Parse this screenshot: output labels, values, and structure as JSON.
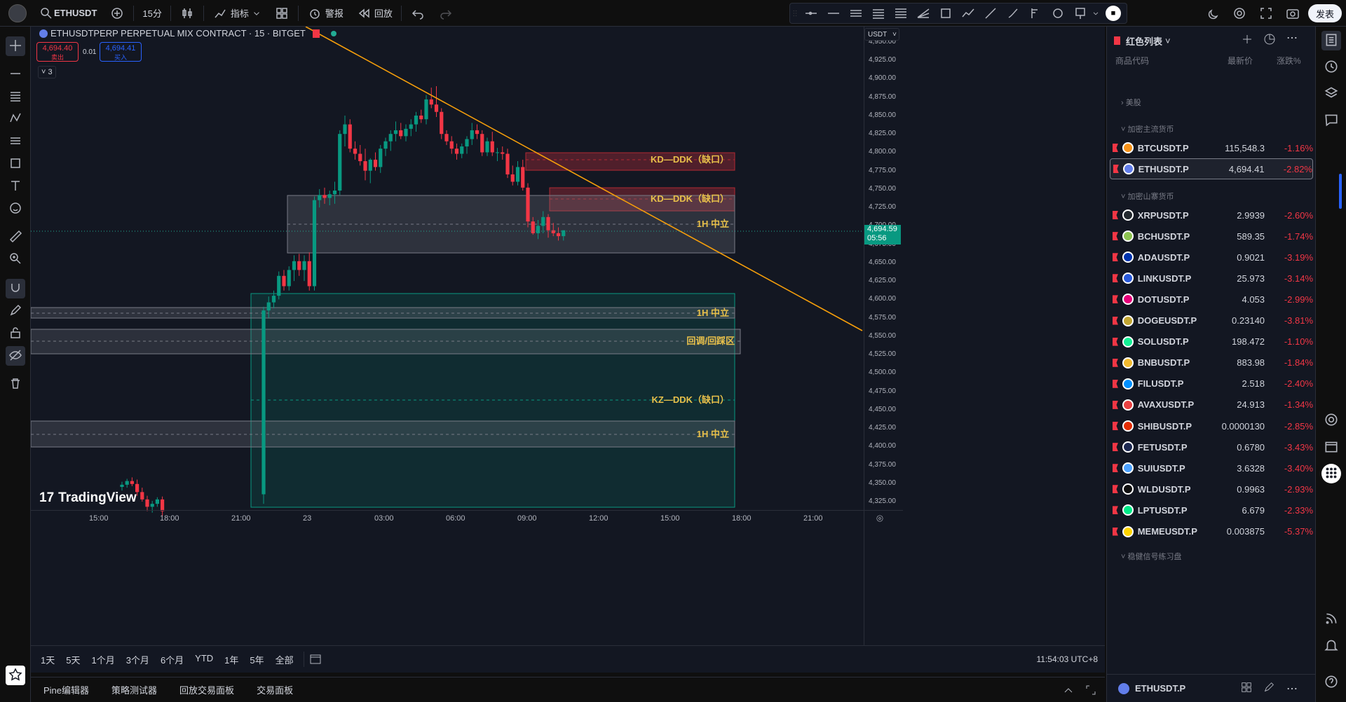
{
  "topbar": {
    "symbol": "ETHUSDT",
    "interval": "15分",
    "indicators": "指标",
    "alert": "警报",
    "replay": "回放",
    "publish": "发表",
    "colors": {
      "accent": "#2962ff"
    }
  },
  "legend": {
    "title": "ETHUSDTPERP PERPETUAL MIX CONTRACT · 15 · BITGET",
    "sell_price": "4,694.40",
    "sell_label": "卖出",
    "spread": "0.01",
    "buy_price": "4,694.41",
    "buy_label": "买入",
    "collapse_count": "3"
  },
  "price_axis": {
    "currency": "USDT",
    "ticks": [
      "4,950.00",
      "4,925.00",
      "4,900.00",
      "4,875.00",
      "4,850.00",
      "4,825.00",
      "4,800.00",
      "4,775.00",
      "4,750.00",
      "4,725.00",
      "4,700.00",
      "4,675.00",
      "4,650.00",
      "4,625.00",
      "4,600.00",
      "4,575.00",
      "4,550.00",
      "4,525.00",
      "4,500.00",
      "4,475.00",
      "4,450.00",
      "4,425.00",
      "4,400.00",
      "4,375.00",
      "4,350.00",
      "4,325.00"
    ],
    "last_price": "4,694.59",
    "countdown": "05:56"
  },
  "time_axis": {
    "ticks": [
      "15:00",
      "18:00",
      "21:00",
      "23",
      "03:00",
      "06:00",
      "09:00",
      "12:00",
      "15:00",
      "18:00",
      "21:00"
    ]
  },
  "zones": [
    {
      "label": "KD—DDK（缺口）",
      "kind": "bearish"
    },
    {
      "label": "KD—DDK（缺口）",
      "kind": "bearish"
    },
    {
      "label": "1H 中立",
      "kind": "neutral"
    },
    {
      "label": "1H 中立",
      "kind": "neutral"
    },
    {
      "label": "回调/回踩区",
      "kind": "neutral"
    },
    {
      "label": "KZ—DDK（缺口）",
      "kind": "bullish"
    },
    {
      "label": "1H 中立",
      "kind": "neutral"
    }
  ],
  "logo": "TradingView",
  "timeframes": [
    "1天",
    "5天",
    "1个月",
    "3个月",
    "6个月",
    "YTD",
    "1年",
    "5年",
    "全部"
  ],
  "clock": "11:54:03 UTC+8",
  "bottom_tabs": [
    "Pine编辑器",
    "策略测试器",
    "回放交易面板",
    "交易面板"
  ],
  "watchlist": {
    "title": "红色列表",
    "col_symbol": "商品代码",
    "col_last": "最新价",
    "col_change": "涨跌%",
    "section_us": "美股",
    "section_major": "加密主流货币",
    "section_alt": "加密山寨货币",
    "section_signal": "稳健信号练习盘",
    "footer_symbol": "ETHUSDT.P",
    "rows": [
      {
        "sym": "BTCUSDT.P",
        "px": "115,548.3",
        "chg": "-1.16%",
        "coin": "#f7931a"
      },
      {
        "sym": "ETHUSDT.P",
        "px": "4,694.41",
        "chg": "-2.82%",
        "coin": "#627eea"
      },
      {
        "sym": "XRPUSDT.P",
        "px": "2.9939",
        "chg": "-2.60%",
        "coin": "#23292f"
      },
      {
        "sym": "BCHUSDT.P",
        "px": "589.35",
        "chg": "-1.74%",
        "coin": "#8dc351"
      },
      {
        "sym": "ADAUSDT.P",
        "px": "0.9021",
        "chg": "-3.19%",
        "coin": "#0033ad"
      },
      {
        "sym": "LINKUSDT.P",
        "px": "25.973",
        "chg": "-3.14%",
        "coin": "#2a5ada"
      },
      {
        "sym": "DOTUSDT.P",
        "px": "4.053",
        "chg": "-2.99%",
        "coin": "#e6007a"
      },
      {
        "sym": "DOGEUSDT.P",
        "px": "0.23140",
        "chg": "-3.81%",
        "coin": "#c2a633"
      },
      {
        "sym": "SOLUSDT.P",
        "px": "198.472",
        "chg": "-1.10%",
        "coin": "#14f195"
      },
      {
        "sym": "BNBUSDT.P",
        "px": "883.98",
        "chg": "-1.84%",
        "coin": "#f3ba2f"
      },
      {
        "sym": "FILUSDT.P",
        "px": "2.518",
        "chg": "-2.40%",
        "coin": "#0090ff"
      },
      {
        "sym": "AVAXUSDT.P",
        "px": "24.913",
        "chg": "-1.34%",
        "coin": "#e84142"
      },
      {
        "sym": "SHIBUSDT.P",
        "px": "0.0000130",
        "chg": "-2.85%",
        "coin": "#e42d04"
      },
      {
        "sym": "FETUSDT.P",
        "px": "0.6780",
        "chg": "-3.43%",
        "coin": "#1d2951"
      },
      {
        "sym": "SUIUSDT.P",
        "px": "3.6328",
        "chg": "-3.40%",
        "coin": "#4da2ff"
      },
      {
        "sym": "WLDUSDT.P",
        "px": "0.9963",
        "chg": "-2.93%",
        "coin": "#111111"
      },
      {
        "sym": "LPTUSDT.P",
        "px": "6.679",
        "chg": "-2.33%",
        "coin": "#00eb88"
      },
      {
        "sym": "MEMEUSDT.P",
        "px": "0.003875",
        "chg": "-5.37%",
        "coin": "#ffd500"
      }
    ]
  },
  "candles": [
    [
      4345,
      4352,
      4340,
      4348
    ],
    [
      4348,
      4356,
      4344,
      4353
    ],
    [
      4353,
      4358,
      4346,
      4349
    ],
    [
      4349,
      4355,
      4333,
      4338
    ],
    [
      4338,
      4344,
      4325,
      4328
    ],
    [
      4328,
      4333,
      4312,
      4318
    ],
    [
      4318,
      4326,
      4310,
      4322
    ],
    [
      4322,
      4331,
      4318,
      4328
    ],
    [
      4328,
      4332,
      4305,
      4312
    ],
    [
      4335,
      4590,
      4322,
      4585
    ],
    [
      4585,
      4604,
      4575,
      4596
    ],
    [
      4596,
      4612,
      4588,
      4605
    ],
    [
      4605,
      4638,
      4600,
      4632
    ],
    [
      4632,
      4640,
      4612,
      4618
    ],
    [
      4618,
      4645,
      4612,
      4640
    ],
    [
      4640,
      4660,
      4625,
      4652
    ],
    [
      4652,
      4662,
      4632,
      4640
    ],
    [
      4640,
      4660,
      4625,
      4652
    ],
    [
      4652,
      4664,
      4612,
      4618
    ],
    [
      4618,
      4740,
      4612,
      4735
    ],
    [
      4735,
      4750,
      4725,
      4742
    ],
    [
      4742,
      4752,
      4730,
      4738
    ],
    [
      4738,
      4748,
      4728,
      4743
    ],
    [
      4743,
      4760,
      4730,
      4748
    ],
    [
      4748,
      4830,
      4742,
      4825
    ],
    [
      4825,
      4850,
      4808,
      4838
    ],
    [
      4838,
      4845,
      4800,
      4805
    ],
    [
      4805,
      4815,
      4790,
      4798
    ],
    [
      4798,
      4810,
      4782,
      4788
    ],
    [
      4788,
      4805,
      4762,
      4775
    ],
    [
      4775,
      4792,
      4758,
      4790
    ],
    [
      4790,
      4800,
      4775,
      4780
    ],
    [
      4780,
      4810,
      4772,
      4805
    ],
    [
      4805,
      4820,
      4795,
      4815
    ],
    [
      4815,
      4830,
      4802,
      4825
    ],
    [
      4825,
      4842,
      4815,
      4830
    ],
    [
      4830,
      4840,
      4818,
      4822
    ],
    [
      4822,
      4838,
      4815,
      4832
    ],
    [
      4832,
      4845,
      4822,
      4838
    ],
    [
      4838,
      4855,
      4828,
      4850
    ],
    [
      4850,
      4858,
      4840,
      4845
    ],
    [
      4845,
      4878,
      4838,
      4872
    ],
    [
      4872,
      4888,
      4860,
      4865
    ],
    [
      4865,
      4890,
      4848,
      4855
    ],
    [
      4855,
      4860,
      4818,
      4825
    ],
    [
      4825,
      4830,
      4810,
      4815
    ],
    [
      4815,
      4822,
      4798,
      4805
    ],
    [
      4805,
      4812,
      4790,
      4798
    ],
    [
      4798,
      4812,
      4792,
      4808
    ],
    [
      4808,
      4822,
      4798,
      4818
    ],
    [
      4818,
      4840,
      4810,
      4830
    ],
    [
      4830,
      4838,
      4818,
      4825
    ],
    [
      4825,
      4830,
      4795,
      4800
    ],
    [
      4800,
      4820,
      4795,
      4815
    ],
    [
      4815,
      4828,
      4795,
      4800
    ],
    [
      4800,
      4806,
      4788,
      4800
    ],
    [
      4800,
      4808,
      4790,
      4798
    ],
    [
      4798,
      4805,
      4765,
      4770
    ],
    [
      4770,
      4782,
      4755,
      4760
    ],
    [
      4760,
      4788,
      4755,
      4780
    ],
    [
      4780,
      4790,
      4748,
      4752
    ],
    [
      4752,
      4758,
      4698,
      4706
    ],
    [
      4706,
      4712,
      4688,
      4690
    ],
    [
      4690,
      4708,
      4682,
      4700
    ],
    [
      4700,
      4720,
      4690,
      4712
    ],
    [
      4712,
      4716,
      4684,
      4694
    ],
    [
      4694,
      4704,
      4686,
      4690
    ],
    [
      4690,
      4698,
      4680,
      4686
    ],
    [
      4686,
      4694,
      4680,
      4694
    ]
  ]
}
